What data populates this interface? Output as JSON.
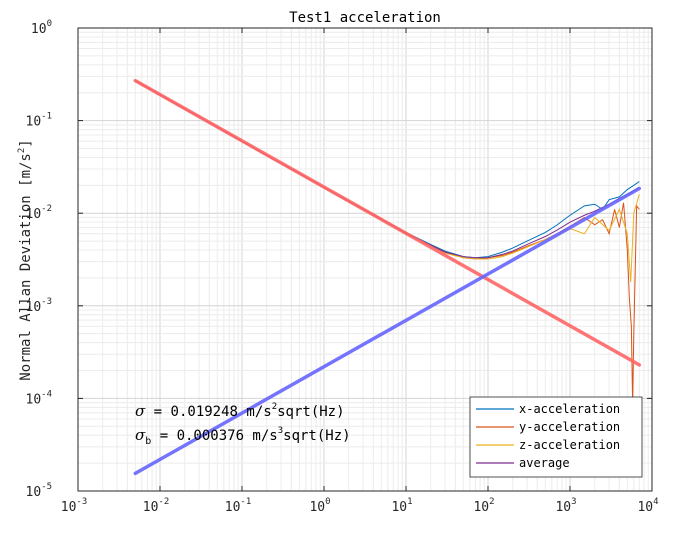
{
  "chart_data": {
    "type": "line",
    "title": "Test1 acceleration",
    "ylabel_main": "Normal Allan Deviation [m/s",
    "ylabel_sup": "2",
    "ylabel_end": "]",
    "x_scale": "log",
    "y_scale": "log",
    "xlim": [
      0.001,
      10000
    ],
    "ylim": [
      1e-05,
      1
    ],
    "grid": true,
    "minor_grid": true,
    "x_ticks": [
      {
        "base": "10",
        "exp": "-3",
        "value": 0.001
      },
      {
        "base": "10",
        "exp": "-2",
        "value": 0.01
      },
      {
        "base": "10",
        "exp": "-1",
        "value": 0.1
      },
      {
        "base": "10",
        "exp": "0",
        "value": 1
      },
      {
        "base": "10",
        "exp": "1",
        "value": 10
      },
      {
        "base": "10",
        "exp": "2",
        "value": 100
      },
      {
        "base": "10",
        "exp": "3",
        "value": 1000
      },
      {
        "base": "10",
        "exp": "4",
        "value": 10000
      }
    ],
    "y_ticks": [
      {
        "base": "10",
        "exp": "-5",
        "value": 1e-05
      },
      {
        "base": "10",
        "exp": "-4",
        "value": 0.0001
      },
      {
        "base": "10",
        "exp": "-3",
        "value": 0.001
      },
      {
        "base": "10",
        "exp": "-2",
        "value": 0.01
      },
      {
        "base": "10",
        "exp": "-1",
        "value": 0.1
      },
      {
        "base": "10",
        "exp": "0",
        "value": 1
      }
    ],
    "legend_position": "bottom-right",
    "series": [
      {
        "name": "x-acceleration",
        "color": "#0072BD",
        "x": [
          0.005,
          0.01,
          0.02,
          0.05,
          0.1,
          0.2,
          0.5,
          1,
          2,
          5,
          10,
          20,
          30,
          50,
          70,
          100,
          150,
          200,
          300,
          500,
          700,
          1000,
          1500,
          2000,
          2500,
          3000,
          4000,
          5000,
          6000,
          7000
        ],
        "y": [
          0.27,
          0.19,
          0.135,
          0.085,
          0.06,
          0.042,
          0.027,
          0.019,
          0.0135,
          0.0086,
          0.0062,
          0.0046,
          0.0039,
          0.0034,
          0.0033,
          0.0034,
          0.0038,
          0.0042,
          0.005,
          0.0062,
          0.0075,
          0.0095,
          0.012,
          0.0125,
          0.011,
          0.014,
          0.015,
          0.018,
          0.02,
          0.022
        ]
      },
      {
        "name": "y-acceleration",
        "color": "#D95319",
        "x": [
          0.005,
          0.01,
          0.02,
          0.05,
          0.1,
          0.2,
          0.5,
          1,
          2,
          5,
          10,
          20,
          30,
          50,
          70,
          100,
          150,
          200,
          300,
          500,
          700,
          1000,
          1500,
          2000,
          2500,
          3000,
          3500,
          4000,
          4500,
          5000,
          5300,
          5600,
          5800,
          6000,
          6500,
          7000
        ],
        "y": [
          0.27,
          0.19,
          0.135,
          0.085,
          0.06,
          0.042,
          0.027,
          0.019,
          0.0135,
          0.0086,
          0.0061,
          0.0045,
          0.0038,
          0.0033,
          0.0032,
          0.0033,
          0.0035,
          0.0038,
          0.0044,
          0.0052,
          0.006,
          0.0072,
          0.009,
          0.0075,
          0.0085,
          0.006,
          0.011,
          0.007,
          0.013,
          0.004,
          0.0012,
          0.0006,
          9e-05,
          0.0005,
          0.012,
          0.011
        ]
      },
      {
        "name": "z-acceleration",
        "color": "#EDB120",
        "x": [
          0.005,
          0.01,
          0.02,
          0.05,
          0.1,
          0.2,
          0.5,
          1,
          2,
          5,
          10,
          20,
          30,
          50,
          70,
          100,
          150,
          200,
          300,
          500,
          700,
          1000,
          1500,
          2000,
          3000,
          4000,
          5000,
          5500,
          6000,
          7000
        ],
        "y": [
          0.27,
          0.19,
          0.135,
          0.085,
          0.06,
          0.042,
          0.027,
          0.019,
          0.0135,
          0.0086,
          0.006,
          0.0044,
          0.0037,
          0.0033,
          0.0032,
          0.0032,
          0.0034,
          0.0037,
          0.0043,
          0.0052,
          0.006,
          0.0068,
          0.006,
          0.009,
          0.0065,
          0.011,
          0.006,
          0.0018,
          0.01,
          0.016
        ]
      },
      {
        "name": "average",
        "color": "#7E2F8E",
        "x": [
          0.005,
          0.01,
          0.02,
          0.05,
          0.1,
          0.2,
          0.5,
          1,
          2,
          5,
          10,
          20,
          30,
          50,
          70,
          100,
          150,
          200,
          300,
          500,
          700,
          1000,
          1500,
          2000,
          3000,
          4000,
          5000,
          6000,
          7000
        ],
        "y": [
          0.27,
          0.19,
          0.135,
          0.085,
          0.06,
          0.042,
          0.027,
          0.019,
          0.0135,
          0.0086,
          0.0061,
          0.0045,
          0.0038,
          0.0034,
          0.0033,
          0.0033,
          0.0036,
          0.0039,
          0.0046,
          0.0056,
          0.0066,
          0.008,
          0.0095,
          0.0105,
          0.0125,
          0.0145,
          0.016,
          0.0175,
          0.019
        ]
      }
    ],
    "fit_lines": [
      {
        "color": "#FF6666",
        "x": [
          0.005,
          7000
        ],
        "y": [
          0.27,
          0.00023
        ]
      },
      {
        "color": "#6666FF",
        "x": [
          0.005,
          7000
        ],
        "y": [
          1.55e-05,
          0.0185
        ]
      }
    ],
    "annotations": {
      "line1": {
        "sym": "σ",
        "text": " = 0.019248 m/s",
        "sup": "2",
        "end": "sqrt(Hz)"
      },
      "line2": {
        "sym": "σ",
        "sub": "b",
        "text": " = 0.000376 m/s",
        "sup": "3",
        "end": "sqrt(Hz)"
      }
    }
  }
}
